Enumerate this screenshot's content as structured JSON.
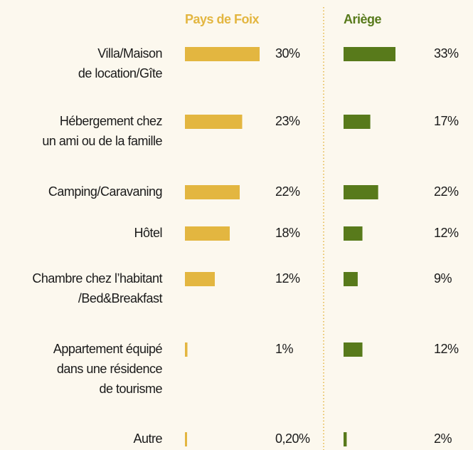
{
  "chart_data": {
    "type": "bar",
    "categories": [
      "Villa/Maison\nde location/Gîte",
      "Hébergement chez\nun ami ou de la famille",
      "Camping/Caravaning",
      "Hôtel",
      "Chambre chez l’habitant\n/Bed&Breakfast",
      "Appartement équipé\ndans une résidence\nde tourisme",
      "Autre"
    ],
    "series": [
      {
        "name": "Pays de Foix",
        "color": "#e3b640",
        "values": [
          30,
          23,
          22,
          18,
          12,
          1,
          0.2
        ],
        "value_labels": [
          "30%",
          "23%",
          "22%",
          "18%",
          "12%",
          "1%",
          "0,20%"
        ]
      },
      {
        "name": "Ariège",
        "color": "#587a1b",
        "values": [
          33,
          17,
          22,
          12,
          9,
          12,
          2
        ],
        "value_labels": [
          "33%",
          "17%",
          "22%",
          "12%",
          "9%",
          "12%",
          "2%"
        ]
      }
    ]
  }
}
